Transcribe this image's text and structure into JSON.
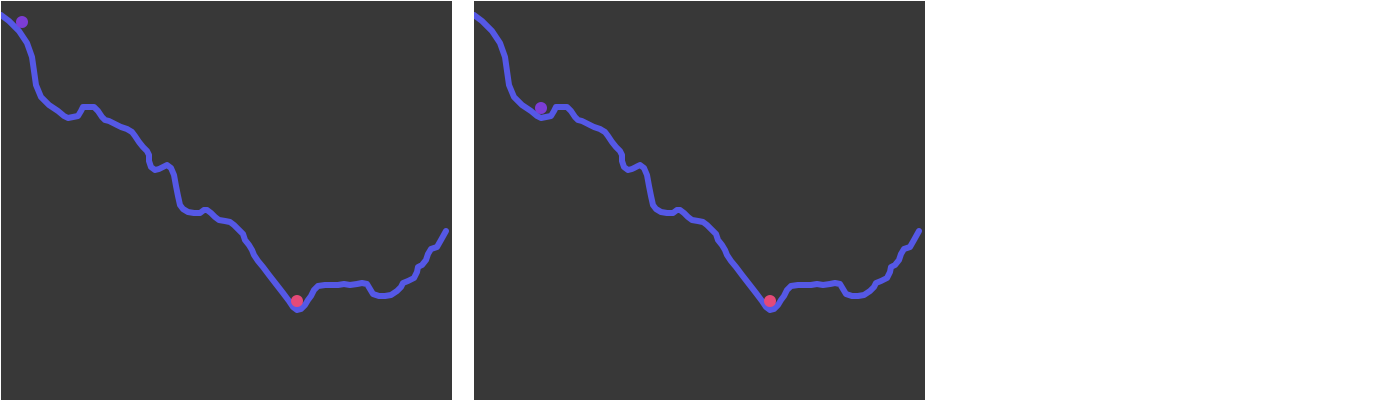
{
  "colors": {
    "panel_background": "#383838",
    "page_background": "#ffffff",
    "terrain": "#5558e6",
    "agent": "#7c3dd6",
    "target": "#e44a78"
  },
  "panels": [
    {
      "id": "before",
      "agent_state": "start"
    },
    {
      "id": "after",
      "agent_state": "descending"
    }
  ]
}
